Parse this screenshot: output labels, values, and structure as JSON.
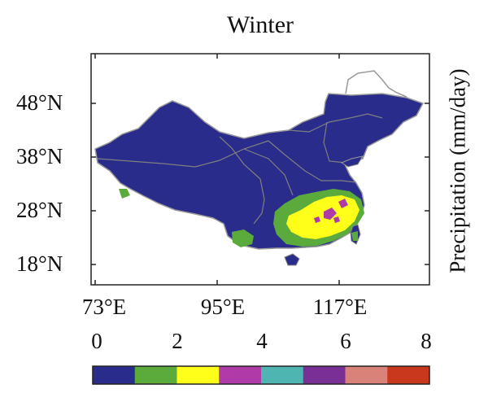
{
  "title": "Winter",
  "colorbar_label": "Precipitation (mm/day)",
  "y_ticks": [
    "48°N",
    "38°N",
    "28°N",
    "18°N"
  ],
  "x_ticks": [
    "73°E",
    "95°E",
    "117°E"
  ],
  "colorbar": {
    "ticks": [
      "0",
      "2",
      "4",
      "6",
      "8"
    ],
    "colors": [
      "#2a2c8c",
      "#5aab3c",
      "#ffff1a",
      "#b03aa8",
      "#4fb5b0",
      "#7a2f97",
      "#d9827a",
      "#c9371c"
    ]
  },
  "colors": {
    "land_dominant": "#2a2c8c",
    "border": "#888888"
  }
}
